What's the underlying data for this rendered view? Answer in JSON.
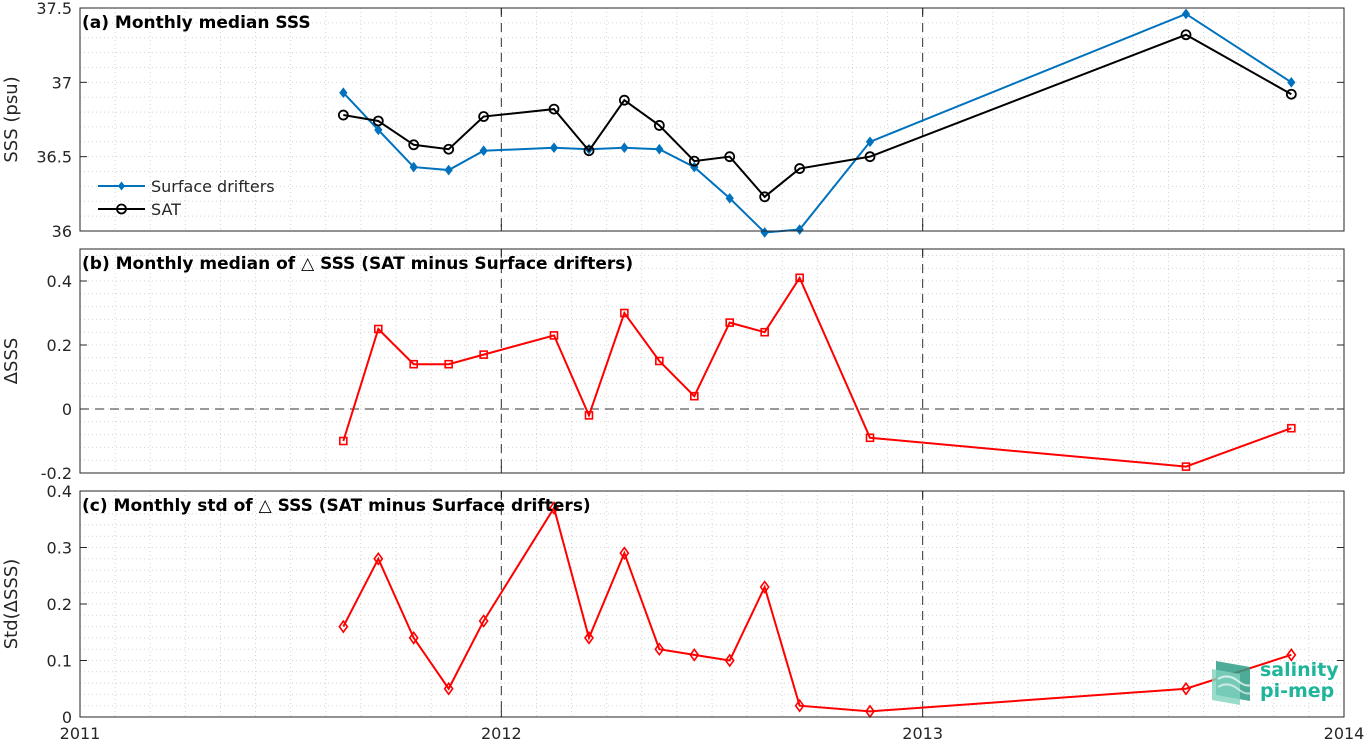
{
  "chart_data": [
    {
      "type": "line",
      "title": "(a) Monthly median SSS",
      "ylabel": "SSS (psu)",
      "xlim": [
        2011,
        2014
      ],
      "ylim": [
        36,
        37.5
      ],
      "yticks": [
        36,
        36.5,
        37,
        37.5
      ],
      "ytick_labels": [
        "36",
        "36.5",
        "37",
        "37.5"
      ],
      "grid": "minor dotted",
      "legend_location": "left",
      "x": [
        2011.625,
        2011.708,
        2011.792,
        2011.875,
        2011.958,
        2012.125,
        2012.208,
        2012.292,
        2012.375,
        2012.458,
        2012.542,
        2012.625,
        2012.708,
        2012.875,
        2013.625,
        2013.875
      ],
      "series": [
        {
          "name": "Surface drifters",
          "color": "#0072bd",
          "marker": "diamond-filled",
          "values": [
            36.93,
            36.68,
            36.43,
            36.41,
            36.54,
            36.56,
            36.55,
            36.56,
            36.55,
            36.43,
            36.22,
            35.99,
            36.01,
            36.6,
            37.46,
            37.0
          ]
        },
        {
          "name": "SAT",
          "color": "#000000",
          "marker": "circle-open",
          "values": [
            36.78,
            36.74,
            36.58,
            36.55,
            36.77,
            36.82,
            36.54,
            36.88,
            36.71,
            36.47,
            36.5,
            36.23,
            36.42,
            36.5,
            37.32,
            36.92
          ]
        }
      ]
    },
    {
      "type": "line",
      "title": "(b) Monthly median of △ SSS (SAT minus Surface drifters)",
      "ylabel": "ΔSSS",
      "xlim": [
        2011,
        2014
      ],
      "ylim": [
        -0.2,
        0.5
      ],
      "yticks": [
        -0.2,
        0,
        0.2,
        0.4
      ],
      "ytick_labels": [
        "-0.2",
        "0",
        "0.2",
        "0.4"
      ],
      "zero_line": true,
      "grid": "minor dotted",
      "x": [
        2011.625,
        2011.708,
        2011.792,
        2011.875,
        2011.958,
        2012.125,
        2012.208,
        2012.292,
        2012.375,
        2012.458,
        2012.542,
        2012.625,
        2012.708,
        2012.875,
        2013.625,
        2013.875
      ],
      "series": [
        {
          "color": "#ff0000",
          "marker": "square-open",
          "values": [
            -0.1,
            0.25,
            0.14,
            0.14,
            0.17,
            0.23,
            -0.02,
            0.3,
            0.15,
            0.04,
            0.27,
            0.24,
            0.41,
            -0.09,
            -0.18,
            -0.06
          ]
        }
      ]
    },
    {
      "type": "line",
      "title": "(c) Monthly std of △ SSS (SAT minus Surface drifters)",
      "ylabel": "Std(ΔSSS)",
      "xlim": [
        2011,
        2014
      ],
      "ylim": [
        0,
        0.4
      ],
      "yticks": [
        0,
        0.1,
        0.2,
        0.3,
        0.4
      ],
      "ytick_labels": [
        "0",
        "0.1",
        "0.2",
        "0.3",
        "0.4"
      ],
      "xticks": [
        2011,
        2012,
        2013,
        2014
      ],
      "xtick_labels": [
        "2011",
        "2012",
        "2013",
        "2014"
      ],
      "grid": "minor dotted",
      "x": [
        2011.625,
        2011.708,
        2011.792,
        2011.875,
        2011.958,
        2012.125,
        2012.208,
        2012.292,
        2012.375,
        2012.458,
        2012.542,
        2012.625,
        2012.708,
        2012.875,
        2013.625,
        2013.875
      ],
      "series": [
        {
          "color": "#ff0000",
          "marker": "diamond-open",
          "values": [
            0.16,
            0.28,
            0.14,
            0.05,
            0.17,
            0.37,
            0.14,
            0.29,
            0.12,
            0.11,
            0.1,
            0.23,
            0.02,
            0.01,
            0.05,
            0.11
          ]
        }
      ]
    }
  ],
  "logo": {
    "line1": "salinity",
    "line2": "pi-mep",
    "color": "#1fb59a"
  }
}
